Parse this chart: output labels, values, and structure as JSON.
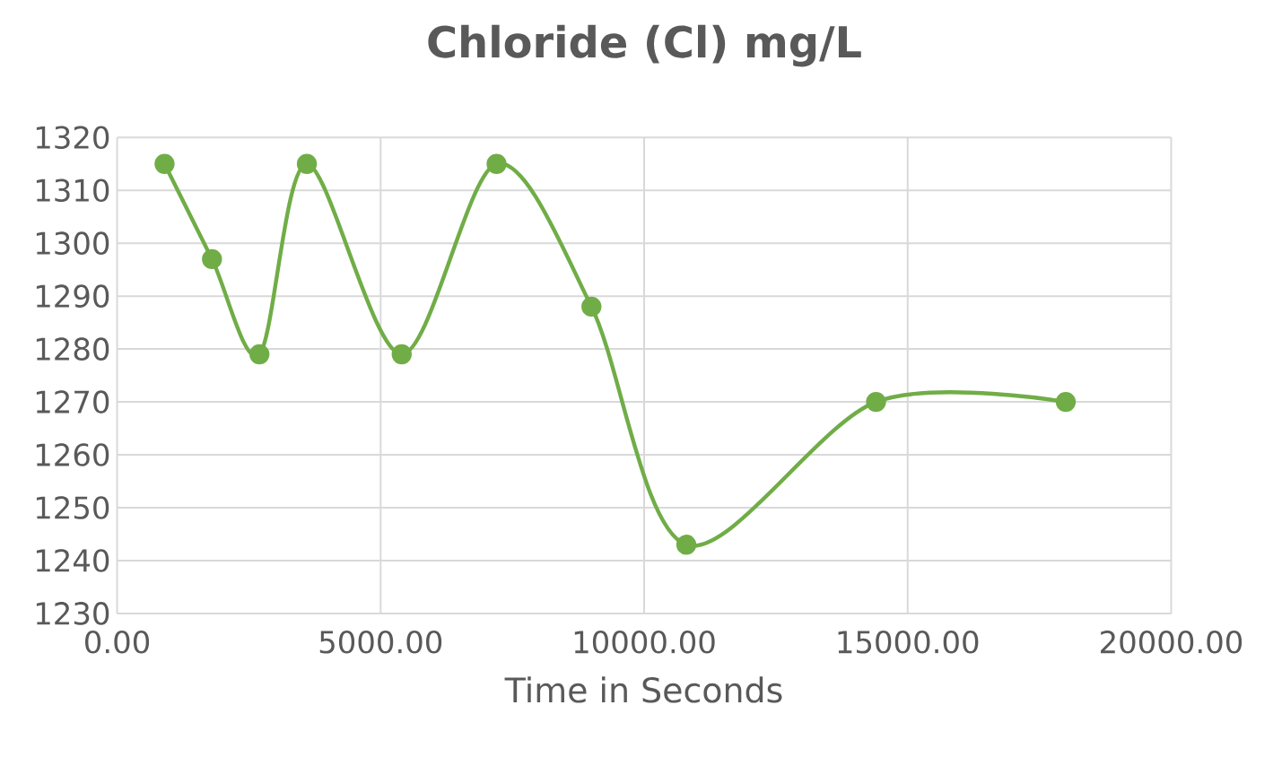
{
  "chart_data": {
    "type": "line",
    "title": "Chloride (Cl) mg/L",
    "xlabel": "Time in Seconds",
    "x": [
      900,
      1800,
      2700,
      3600,
      5400,
      7200,
      9000,
      10800,
      14400,
      18000
    ],
    "series": [
      {
        "color": "#70ad47",
        "values": [
          1315,
          1297,
          1279,
          1315,
          1279,
          1315,
          1288,
          1243,
          1270,
          1270
        ]
      }
    ],
    "xlim": [
      0,
      20000
    ],
    "xticks": [
      {
        "value": 0,
        "label": "0.00"
      },
      {
        "value": 5000,
        "label": "5000.00"
      },
      {
        "value": 10000,
        "label": "10000.00"
      },
      {
        "value": 15000,
        "label": "15000.00"
      },
      {
        "value": 20000,
        "label": "20000.00"
      }
    ],
    "ylim": [
      1230,
      1320
    ],
    "yticks": [
      1230,
      1240,
      1250,
      1260,
      1270,
      1280,
      1290,
      1300,
      1310,
      1320
    ],
    "grid": true,
    "marker": "circle",
    "line_style": "solid",
    "legend": false
  }
}
